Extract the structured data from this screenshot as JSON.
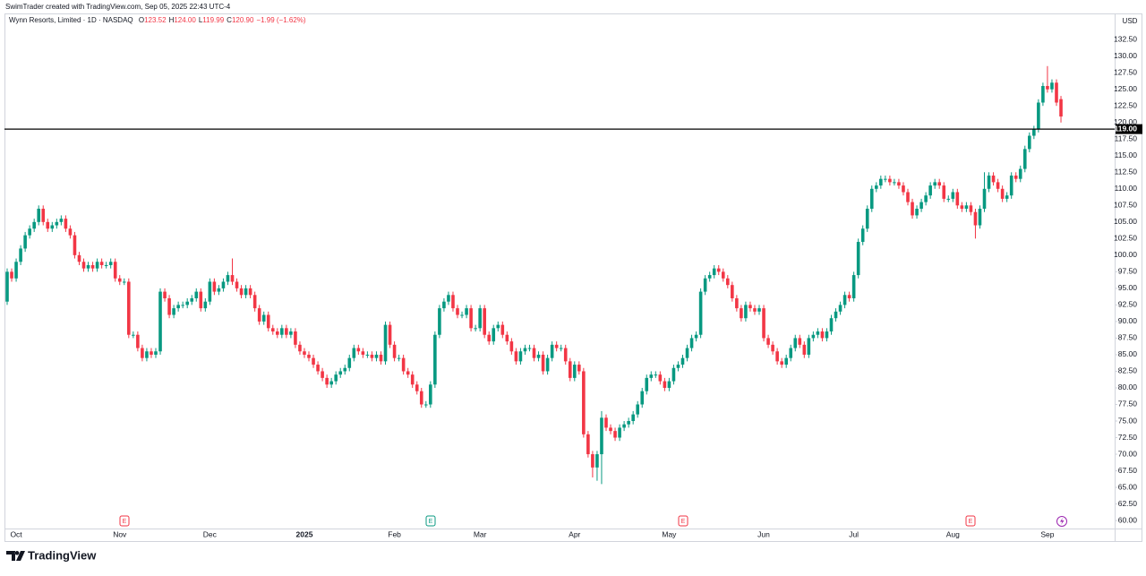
{
  "header": "SwimTrader created with TradingView.com, Sep 05, 2025 22:43 UTC-4",
  "logo": "TradingView",
  "events": [
    "E",
    "E",
    "E",
    "E"
  ],
  "chart_data": {
    "type": "candlestick",
    "title": "Wynn Resorts, Limited · 1D · NASDAQ",
    "ohlc_legend": [
      {
        "label": "O",
        "value": "123.52"
      },
      {
        "label": "H",
        "value": "124.00"
      },
      {
        "label": "L",
        "value": "119.99"
      },
      {
        "label": "C",
        "value": "120.90"
      }
    ],
    "change": "−1.99 (−1.62%)",
    "currency": "USD",
    "up_color": "#089981",
    "down_color": "#f23645",
    "grid": false,
    "hline": {
      "value": 119,
      "label": "119.00",
      "color": "#000000"
    },
    "ylim": [
      58.8,
      136.3
    ],
    "yticks": [
      {
        "value": 60,
        "label": "60.00"
      },
      {
        "value": 62.5,
        "label": "62.50"
      },
      {
        "value": 65,
        "label": "65.00"
      },
      {
        "value": 67.5,
        "label": "67.50"
      },
      {
        "value": 70,
        "label": "70.00"
      },
      {
        "value": 72.5,
        "label": "72.50"
      },
      {
        "value": 75,
        "label": "75.00"
      },
      {
        "value": 77.5,
        "label": "77.50"
      },
      {
        "value": 80,
        "label": "80.00"
      },
      {
        "value": 82.5,
        "label": "82.50"
      },
      {
        "value": 85,
        "label": "85.00"
      },
      {
        "value": 87.5,
        "label": "87.50"
      },
      {
        "value": 90,
        "label": "90.00"
      },
      {
        "value": 92.5,
        "label": "92.50"
      },
      {
        "value": 95,
        "label": "95.00"
      },
      {
        "value": 97.5,
        "label": "97.50"
      },
      {
        "value": 100,
        "label": "100.00"
      },
      {
        "value": 102.5,
        "label": "102.50"
      },
      {
        "value": 105,
        "label": "105.00"
      },
      {
        "value": 107.5,
        "label": "107.50"
      },
      {
        "value": 110,
        "label": "110.00"
      },
      {
        "value": 112.5,
        "label": "112.50"
      },
      {
        "value": 115,
        "label": "115.00"
      },
      {
        "value": 117.5,
        "label": "117.50"
      },
      {
        "value": 120,
        "label": "120.00"
      },
      {
        "value": 122.5,
        "label": "122.50"
      },
      {
        "value": 125,
        "label": "125.00"
      },
      {
        "value": 127.5,
        "label": "127.50"
      },
      {
        "value": 130,
        "label": "130.00"
      },
      {
        "value": 132.5,
        "label": "132.50"
      }
    ],
    "categories": [
      null,
      null,
      "Oct",
      null,
      null,
      null,
      null,
      null,
      null,
      null,
      null,
      null,
      null,
      null,
      null,
      null,
      null,
      null,
      null,
      null,
      null,
      null,
      null,
      null,
      null,
      "Nov",
      null,
      null,
      null,
      null,
      null,
      null,
      null,
      null,
      null,
      null,
      null,
      null,
      null,
      null,
      null,
      null,
      null,
      null,
      null,
      "Dec",
      null,
      null,
      null,
      null,
      null,
      null,
      null,
      null,
      null,
      null,
      null,
      null,
      null,
      null,
      null,
      null,
      null,
      null,
      null,
      null,
      "2025",
      null,
      null,
      null,
      null,
      null,
      null,
      null,
      null,
      null,
      null,
      null,
      null,
      null,
      null,
      null,
      null,
      null,
      null,
      null,
      "Feb",
      null,
      null,
      null,
      null,
      null,
      null,
      null,
      null,
      null,
      null,
      null,
      null,
      null,
      null,
      null,
      null,
      null,
      null,
      "Mar",
      null,
      null,
      null,
      null,
      null,
      null,
      null,
      null,
      null,
      null,
      null,
      null,
      null,
      null,
      null,
      null,
      null,
      null,
      null,
      null,
      "Apr",
      null,
      null,
      null,
      null,
      null,
      null,
      null,
      null,
      null,
      null,
      null,
      null,
      null,
      null,
      null,
      null,
      null,
      null,
      null,
      null,
      "May",
      null,
      null,
      null,
      null,
      null,
      null,
      null,
      null,
      null,
      null,
      null,
      null,
      null,
      null,
      null,
      null,
      null,
      null,
      null,
      null,
      "Jun",
      null,
      null,
      null,
      null,
      null,
      null,
      null,
      null,
      null,
      null,
      null,
      null,
      null,
      null,
      null,
      null,
      null,
      null,
      null,
      "Jul",
      null,
      null,
      null,
      null,
      null,
      null,
      null,
      null,
      null,
      null,
      null,
      null,
      null,
      null,
      null,
      null,
      null,
      null,
      null,
      null,
      null,
      "Aug",
      null,
      null,
      null,
      null,
      null,
      null,
      null,
      null,
      null,
      null,
      null,
      null,
      null,
      null,
      null,
      null,
      null,
      null,
      null,
      null,
      "Sep",
      null,
      null,
      null
    ],
    "open": [
      93,
      97.5,
      96.5,
      99,
      101,
      103,
      104,
      105,
      107,
      105,
      104,
      104.5,
      105,
      105.5,
      104,
      103,
      100,
      99,
      98,
      98.5,
      98,
      99,
      98.5,
      98.5,
      99,
      96.5,
      96,
      96,
      88,
      88,
      86,
      84.5,
      85.5,
      85,
      85.5,
      94.5,
      93.5,
      91,
      92,
      92.5,
      92.5,
      93,
      93.5,
      94.5,
      92,
      93,
      96,
      94.5,
      95,
      96,
      97,
      96,
      95,
      94,
      95,
      94,
      92,
      90,
      91,
      89,
      88.5,
      88,
      89,
      88,
      88.5,
      86.5,
      85.5,
      85,
      84.5,
      83.5,
      82.5,
      81.5,
      80.5,
      81,
      82,
      82.5,
      83,
      84.5,
      86,
      85.5,
      85,
      85,
      84.5,
      85,
      84,
      89.5,
      86.5,
      84.5,
      84.5,
      82.5,
      82,
      80.5,
      79.5,
      77.5,
      77.5,
      80.5,
      88,
      92,
      93,
      94,
      92,
      91,
      91,
      92,
      89,
      89,
      92,
      88,
      87,
      89,
      89.5,
      88,
      87,
      85.5,
      84,
      85.5,
      86,
      86,
      84.5,
      85,
      82.5,
      84.5,
      86.5,
      86,
      86,
      84,
      81.5,
      83.5,
      82.5,
      73,
      70,
      68,
      70,
      75.5,
      74,
      73.5,
      72.5,
      74,
      74.5,
      75,
      76,
      77.5,
      79.5,
      81.5,
      82,
      82,
      81,
      80,
      81,
      83,
      83.5,
      84.5,
      86,
      87.5,
      88,
      94.5,
      96.5,
      97,
      98,
      97.5,
      96.5,
      95.5,
      93.5,
      92,
      90.5,
      92.5,
      92,
      91.5,
      92,
      87.5,
      86.5,
      85.5,
      84,
      83.5,
      84.5,
      86,
      87.5,
      86.5,
      85,
      87.5,
      88,
      88.5,
      87.5,
      88.5,
      90.5,
      91.5,
      92.5,
      94,
      93.5,
      97,
      102,
      104,
      107,
      110,
      110.5,
      111.5,
      111.5,
      111,
      111,
      110.5,
      109.5,
      108,
      106,
      107,
      108,
      109,
      110.5,
      111,
      110.5,
      108.5,
      108.5,
      109.5,
      107.5,
      107,
      107.5,
      106.5,
      104.5,
      107,
      110,
      112,
      111,
      110,
      108.5,
      109,
      112,
      111.5,
      113,
      116,
      118,
      119,
      123,
      125.5,
      125,
      126,
      123.52
    ],
    "high": [
      98,
      98,
      99.5,
      101.5,
      103.5,
      104.5,
      105.5,
      107.5,
      107.5,
      105.5,
      105,
      105.5,
      106,
      106,
      104.5,
      103.5,
      100.5,
      99.5,
      99,
      99,
      99.5,
      99.5,
      99,
      99.5,
      99.5,
      97,
      96.5,
      96.5,
      88.5,
      88.5,
      86.5,
      86,
      86,
      86,
      95,
      95,
      94,
      92.5,
      93,
      93,
      93.5,
      94,
      95,
      95,
      93.5,
      96.5,
      96.5,
      95.5,
      96.5,
      97.5,
      99.5,
      96.5,
      95.5,
      95.5,
      95.5,
      94.5,
      92.5,
      91.5,
      91.5,
      89.5,
      89,
      89.5,
      89.5,
      89,
      89,
      87,
      86,
      85.5,
      85,
      84,
      83,
      82,
      81.5,
      82.5,
      83,
      83.5,
      85,
      86.5,
      86.5,
      86,
      85.5,
      85.5,
      85.5,
      85.5,
      90,
      90,
      87,
      85,
      85,
      83,
      82.5,
      81,
      80,
      78,
      81,
      88.5,
      92.5,
      93.5,
      94.5,
      94.5,
      92.5,
      91.5,
      92.5,
      92.5,
      89.5,
      92.5,
      92.5,
      88.5,
      89.5,
      90,
      90,
      88.5,
      87.5,
      86,
      86,
      86.5,
      86.5,
      86.5,
      85.5,
      85.5,
      85,
      87,
      87,
      86.5,
      86.5,
      84.5,
      84,
      84,
      83,
      73.5,
      70.5,
      70.5,
      76.5,
      76,
      74.5,
      74,
      74.5,
      75,
      75.5,
      76.5,
      78,
      80,
      82,
      82.5,
      82.5,
      82.5,
      81.5,
      81.5,
      83.5,
      84,
      85,
      86.5,
      88,
      88.5,
      95,
      97,
      97.5,
      98.5,
      98.5,
      98,
      97,
      96,
      94,
      92.5,
      93,
      93,
      92.5,
      92.5,
      92.5,
      88,
      87,
      86,
      84.5,
      85,
      86.5,
      88,
      88,
      87,
      88,
      88.5,
      89,
      89,
      89,
      91,
      92,
      93,
      94.5,
      94.5,
      97.5,
      102.5,
      104.5,
      107.5,
      110.5,
      111,
      112,
      112,
      112,
      111.5,
      111.5,
      111,
      110,
      108.5,
      107.5,
      108.5,
      109.5,
      111,
      111.5,
      111.5,
      111,
      109,
      110,
      110,
      108,
      108,
      108,
      107,
      107.5,
      112.5,
      112.5,
      112.5,
      111.5,
      110.5,
      109.5,
      112.5,
      112.5,
      113.5,
      116.5,
      118.5,
      119.5,
      123.5,
      126,
      128.5,
      126.5,
      126.5,
      124
    ],
    "low": [
      92.5,
      96,
      96,
      98.5,
      100.5,
      102.5,
      103.5,
      104.5,
      104.5,
      103.5,
      103.5,
      104,
      104.5,
      103.5,
      102.5,
      99.5,
      98.5,
      97.5,
      97.5,
      97.5,
      97.5,
      98,
      98,
      98,
      96,
      95.5,
      95.5,
      87.5,
      87.5,
      85.5,
      84,
      84,
      84.5,
      84.5,
      85,
      93,
      90.5,
      90.5,
      91.5,
      92,
      92,
      92.5,
      93,
      91.5,
      91.5,
      92.5,
      94,
      94,
      94.5,
      95.5,
      95.5,
      94.5,
      93.5,
      93.5,
      93.5,
      91.5,
      89.5,
      89.5,
      88.5,
      88,
      87.5,
      87.5,
      87.5,
      87.5,
      86,
      85,
      84.5,
      84,
      83,
      82,
      81,
      80,
      80,
      80.5,
      81.5,
      82,
      82.5,
      84,
      85,
      84.5,
      84.5,
      84,
      84,
      83.5,
      83.5,
      86,
      84,
      84,
      82,
      81.5,
      80,
      79,
      77,
      77,
      77,
      80,
      87.5,
      91.5,
      92.5,
      91.5,
      90.5,
      90.5,
      90.5,
      88.5,
      88.5,
      88.5,
      87.5,
      86.5,
      86.5,
      88.5,
      87.5,
      86.5,
      85,
      83.5,
      83.5,
      85,
      85.5,
      84,
      84,
      82,
      82,
      84,
      85.5,
      85.5,
      83.5,
      81,
      81,
      82,
      72.5,
      69.5,
      66.5,
      66,
      65.5,
      73.5,
      73,
      72,
      72,
      73.5,
      74,
      74.5,
      75.5,
      77,
      79,
      81,
      81.5,
      80.5,
      79.5,
      79.5,
      80.5,
      82.5,
      83,
      84,
      85.5,
      87,
      87.5,
      94,
      96,
      96.5,
      97,
      96,
      95,
      93,
      91.5,
      90,
      90,
      91.5,
      91,
      91,
      87,
      86,
      85,
      83.5,
      83,
      83,
      84,
      85.5,
      86,
      84.5,
      84.5,
      87,
      87.5,
      87,
      87,
      88,
      90,
      91,
      92,
      93,
      93,
      96.5,
      101.5,
      103.5,
      106.5,
      109.5,
      110,
      111,
      110.5,
      110.5,
      110,
      109,
      107.5,
      105.5,
      105.5,
      106.5,
      107.5,
      108.5,
      110,
      110,
      108,
      108,
      108,
      107,
      106.5,
      106.5,
      106,
      102.5,
      104,
      106.5,
      109.5,
      110.5,
      109.5,
      108,
      108,
      108.5,
      111,
      111,
      112.5,
      115.5,
      117.5,
      118.5,
      122.5,
      124.5,
      124.5,
      122.5,
      119.99
    ],
    "close": [
      97.5,
      96.5,
      99,
      101,
      103,
      104,
      105,
      107,
      105,
      104,
      104.5,
      105,
      105.5,
      104,
      103,
      100,
      99,
      98,
      98.5,
      98,
      99,
      98.5,
      98.5,
      99,
      96.5,
      96,
      96,
      88,
      88,
      86,
      84.5,
      85.5,
      85,
      85.5,
      94.5,
      93.5,
      91,
      92,
      92.5,
      92.5,
      93,
      93.5,
      94.5,
      92,
      93,
      96,
      94.5,
      95,
      96,
      97,
      96,
      95,
      94,
      95,
      94,
      92,
      90,
      91,
      89,
      88.5,
      88,
      89,
      88,
      88.5,
      86.5,
      85.5,
      85,
      84.5,
      83.5,
      82.5,
      81.5,
      80.5,
      81,
      82,
      82.5,
      83,
      84.5,
      86,
      85.5,
      85,
      85,
      84.5,
      85,
      84,
      89.5,
      86.5,
      84.5,
      84.5,
      82.5,
      82,
      80.5,
      79.5,
      77.5,
      77.5,
      80.5,
      88,
      92,
      93,
      94,
      92,
      91,
      91,
      92,
      89,
      89,
      92,
      88,
      87,
      89,
      89.5,
      88,
      87,
      85.5,
      84,
      85.5,
      86,
      86,
      84.5,
      85,
      82.5,
      84.5,
      86.5,
      86,
      86,
      84,
      81.5,
      83.5,
      82.5,
      73,
      70,
      68,
      70,
      75.5,
      74,
      73.5,
      72.5,
      74,
      74.5,
      75,
      76,
      77.5,
      79.5,
      81.5,
      82,
      82,
      81,
      80,
      81,
      83,
      83.5,
      84.5,
      86,
      87.5,
      88,
      94.5,
      96.5,
      97,
      98,
      97.5,
      96.5,
      95.5,
      93.5,
      92,
      90.5,
      92.5,
      92,
      91.5,
      92,
      87.5,
      86.5,
      85.5,
      84,
      83.5,
      84.5,
      86,
      87.5,
      86.5,
      85,
      87.5,
      88,
      88.5,
      87.5,
      88.5,
      90.5,
      91.5,
      92.5,
      94,
      93.5,
      97,
      102,
      104,
      107,
      110,
      110.5,
      111.5,
      111.5,
      111,
      111,
      110.5,
      109.5,
      108,
      106,
      107,
      108,
      109,
      110.5,
      111,
      110.5,
      108.5,
      108.5,
      109.5,
      107.5,
      107,
      107.5,
      106.5,
      104.5,
      107,
      110,
      112,
      111,
      110,
      108.5,
      109,
      112,
      111.5,
      113,
      116,
      118,
      119,
      123,
      125.5,
      125,
      126,
      123,
      120.9
    ]
  }
}
